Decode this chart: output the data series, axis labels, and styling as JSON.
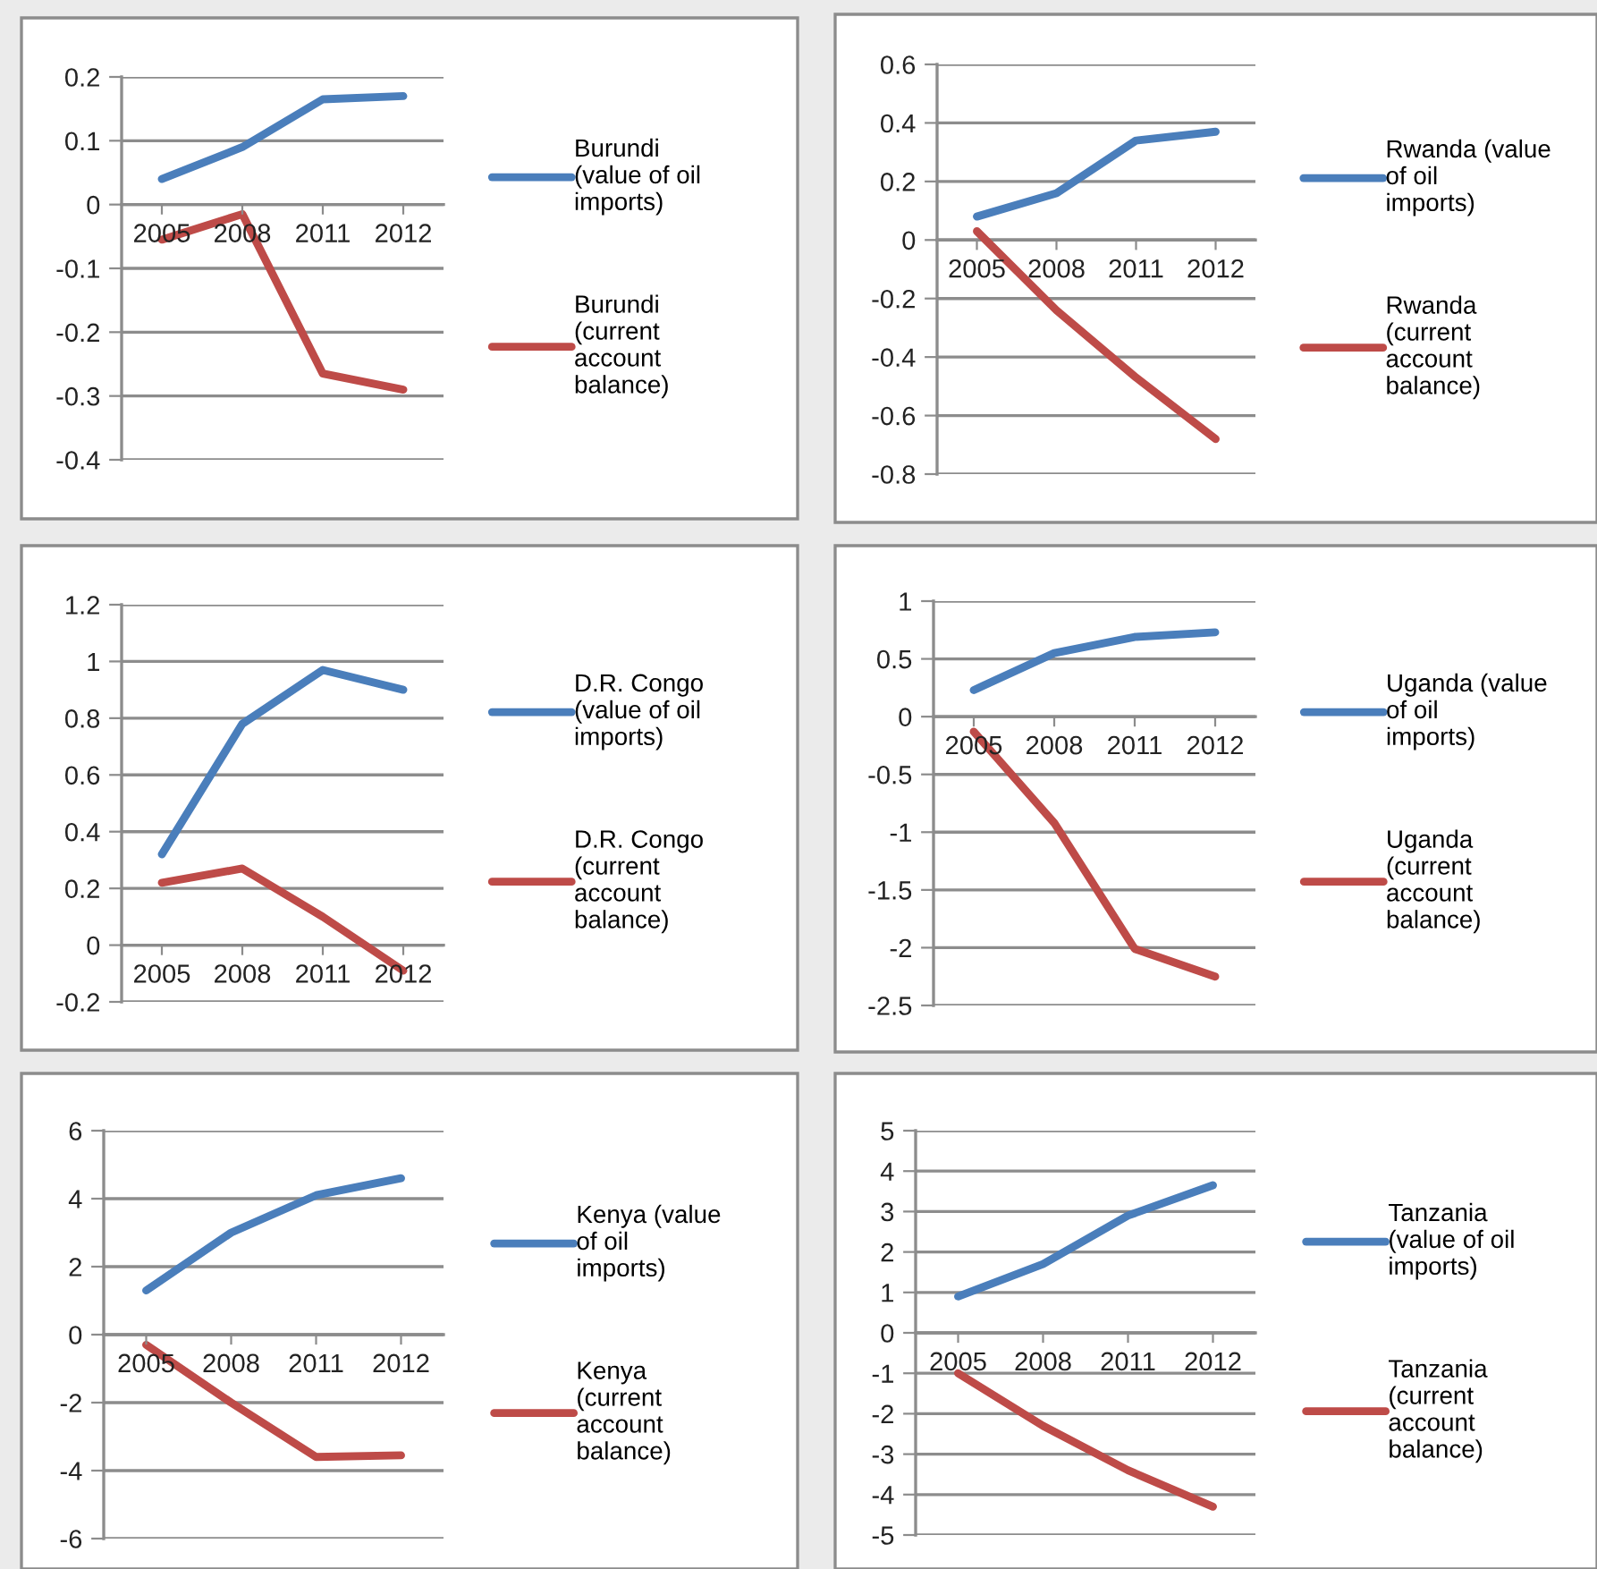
{
  "chart_data": [
    {
      "type": "line",
      "categories": [
        "2005",
        "2008",
        "2011",
        "2012"
      ],
      "ylim": [
        -0.4,
        0.2
      ],
      "yticks": [
        -0.4,
        -0.3,
        -0.2,
        -0.1,
        0,
        0.1,
        0.2
      ],
      "grid": "y",
      "legend": "right",
      "line_style": "solid",
      "series": [
        {
          "name": "Burundi (value of oil imports)",
          "color": "#4a7ebb",
          "values": [
            0.04,
            0.09,
            0.165,
            0.17
          ]
        },
        {
          "name": "Burundi (current account balance)",
          "color": "#be4b48",
          "values": [
            -0.055,
            -0.015,
            -0.265,
            -0.29
          ]
        }
      ]
    },
    {
      "type": "line",
      "categories": [
        "2005",
        "2008",
        "2011",
        "2012"
      ],
      "ylim": [
        -0.8,
        0.6
      ],
      "yticks": [
        -0.8,
        -0.6,
        -0.4,
        -0.2,
        0,
        0.2,
        0.4,
        0.6
      ],
      "grid": "y",
      "legend": "right",
      "line_style": "solid",
      "series": [
        {
          "name": "Rwanda (value of oil imports)",
          "color": "#4a7ebb",
          "values": [
            0.08,
            0.16,
            0.34,
            0.37
          ]
        },
        {
          "name": "Rwanda (current account balance)",
          "color": "#be4b48",
          "values": [
            0.03,
            -0.24,
            -0.47,
            -0.68
          ]
        }
      ]
    },
    {
      "type": "line",
      "categories": [
        "2005",
        "2008",
        "2011",
        "2012"
      ],
      "ylim": [
        -0.2,
        1.2
      ],
      "yticks": [
        -0.2,
        0,
        0.2,
        0.4,
        0.6,
        0.8,
        1,
        1.2
      ],
      "grid": "y",
      "legend": "right",
      "line_style": "solid",
      "series": [
        {
          "name": "D.R. Congo (value of oil imports)",
          "color": "#4a7ebb",
          "values": [
            0.32,
            0.78,
            0.97,
            0.9
          ]
        },
        {
          "name": "D.R. Congo (current account balance)",
          "color": "#be4b48",
          "values": [
            0.22,
            0.27,
            0.1,
            -0.09
          ]
        }
      ]
    },
    {
      "type": "line",
      "categories": [
        "2005",
        "2008",
        "2011",
        "2012"
      ],
      "ylim": [
        -2.5,
        1
      ],
      "yticks": [
        -2.5,
        -2,
        -1.5,
        -1,
        -0.5,
        0,
        0.5,
        1
      ],
      "grid": "y",
      "legend": "right",
      "line_style": "solid",
      "series": [
        {
          "name": "Uganda (value of oil imports)",
          "color": "#4a7ebb",
          "values": [
            0.23,
            0.55,
            0.69,
            0.73
          ]
        },
        {
          "name": "Uganda (current account balance)",
          "color": "#be4b48",
          "values": [
            -0.13,
            -0.92,
            -2.01,
            -2.25
          ]
        }
      ]
    },
    {
      "type": "line",
      "categories": [
        "2005",
        "2008",
        "2011",
        "2012"
      ],
      "ylim": [
        -6,
        6
      ],
      "yticks": [
        -6,
        -4,
        -2,
        0,
        2,
        4,
        6
      ],
      "grid": "y",
      "legend": "right",
      "line_style": "solid",
      "series": [
        {
          "name": "Kenya (value of oil imports)",
          "color": "#4a7ebb",
          "values": [
            1.3,
            3.0,
            4.1,
            4.6
          ]
        },
        {
          "name": "Kenya (current account balance)",
          "color": "#be4b48",
          "values": [
            -0.3,
            -2.0,
            -3.6,
            -3.55
          ]
        }
      ]
    },
    {
      "type": "line",
      "categories": [
        "2005",
        "2008",
        "2011",
        "2012"
      ],
      "ylim": [
        -5,
        5
      ],
      "yticks": [
        -5,
        -4,
        -3,
        -2,
        -1,
        0,
        1,
        2,
        3,
        4,
        5
      ],
      "grid": "y",
      "legend": "right",
      "line_style": "solid",
      "series": [
        {
          "name": "Tanzania (value of oil imports)",
          "color": "#4a7ebb",
          "values": [
            0.9,
            1.7,
            2.9,
            3.65
          ]
        },
        {
          "name": "Tanzania (current account balance)",
          "color": "#be4b48",
          "values": [
            -1.0,
            -2.3,
            -3.4,
            -4.3
          ]
        }
      ]
    }
  ]
}
